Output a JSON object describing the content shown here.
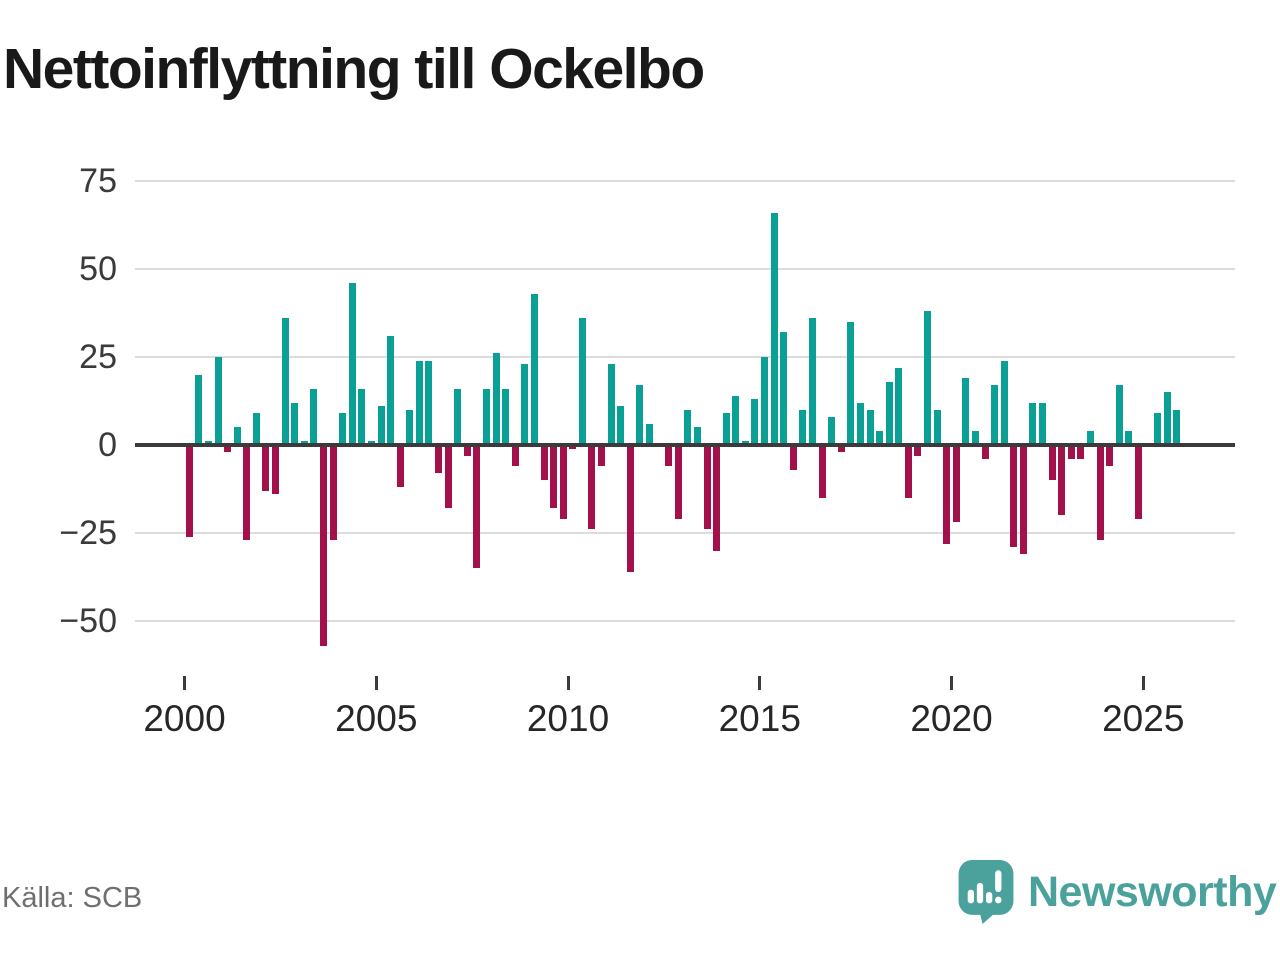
{
  "title": "Nettoinflyttning till Ockelbo",
  "source": "Källa: SCB",
  "logo": {
    "text": "Newsworthy"
  },
  "colors": {
    "positive": "#0ba096",
    "negative": "#a21149",
    "zero_line": "#3b3b3b",
    "gridline": "#dcdcdc",
    "title_text": "#191919",
    "axis_label": "#3a3a3a",
    "source_text": "#6f6f6f",
    "logo_teal": "#4ba29c",
    "background": "#ffffff"
  },
  "chart_data": {
    "type": "bar",
    "title": "Nettoinflyttning till Ockelbo",
    "xlabel": "",
    "ylabel": "",
    "grid": true,
    "legend": "none",
    "ylim": [
      -60,
      78
    ],
    "y_tick_values": [
      75,
      50,
      25,
      0,
      -25,
      -50
    ],
    "y_tick_labels": [
      "75",
      "50",
      "25",
      "0",
      "−25",
      "−50"
    ],
    "x_tick_years": [
      2000,
      2005,
      2010,
      2015,
      2020,
      2025
    ],
    "frequency": "quarterly",
    "series": [
      {
        "year": 2000,
        "values": [
          -26,
          20,
          1,
          25
        ]
      },
      {
        "year": 2001,
        "values": [
          -2,
          5,
          -27,
          9
        ]
      },
      {
        "year": 2002,
        "values": [
          -13,
          -14,
          36,
          12
        ]
      },
      {
        "year": 2003,
        "values": [
          1,
          16,
          -57,
          -27
        ]
      },
      {
        "year": 2004,
        "values": [
          9,
          46,
          16,
          1
        ]
      },
      {
        "year": 2005,
        "values": [
          11,
          31,
          -12,
          10
        ]
      },
      {
        "year": 2006,
        "values": [
          24,
          24,
          -8,
          -18
        ]
      },
      {
        "year": 2007,
        "values": [
          16,
          -3,
          -35,
          16
        ]
      },
      {
        "year": 2008,
        "values": [
          26,
          16,
          -6,
          23
        ]
      },
      {
        "year": 2009,
        "values": [
          43,
          -10,
          -18,
          -21
        ]
      },
      {
        "year": 2010,
        "values": [
          -1,
          36,
          -24,
          -6
        ]
      },
      {
        "year": 2011,
        "values": [
          23,
          11,
          -36,
          17
        ]
      },
      {
        "year": 2012,
        "values": [
          6,
          0,
          -6,
          -21
        ]
      },
      {
        "year": 2013,
        "values": [
          10,
          5,
          -24,
          -30
        ]
      },
      {
        "year": 2014,
        "values": [
          9,
          14,
          1,
          13
        ]
      },
      {
        "year": 2015,
        "values": [
          25,
          66,
          32,
          -7
        ]
      },
      {
        "year": 2016,
        "values": [
          10,
          36,
          -15,
          8
        ]
      },
      {
        "year": 2017,
        "values": [
          -2,
          35,
          12,
          10
        ]
      },
      {
        "year": 2018,
        "values": [
          4,
          18,
          22,
          -15
        ]
      },
      {
        "year": 2019,
        "values": [
          -3,
          38,
          10,
          -28
        ]
      },
      {
        "year": 2020,
        "values": [
          -22,
          19,
          4,
          -4
        ]
      },
      {
        "year": 2021,
        "values": [
          17,
          24,
          -29,
          -31
        ]
      },
      {
        "year": 2022,
        "values": [
          12,
          12,
          -10,
          -20
        ]
      },
      {
        "year": 2023,
        "values": [
          -4,
          -4,
          4,
          -27
        ]
      },
      {
        "year": 2024,
        "values": [
          -6,
          17,
          4,
          -21
        ]
      },
      {
        "year": 2025,
        "values": [
          0,
          9,
          15,
          10
        ]
      }
    ]
  }
}
